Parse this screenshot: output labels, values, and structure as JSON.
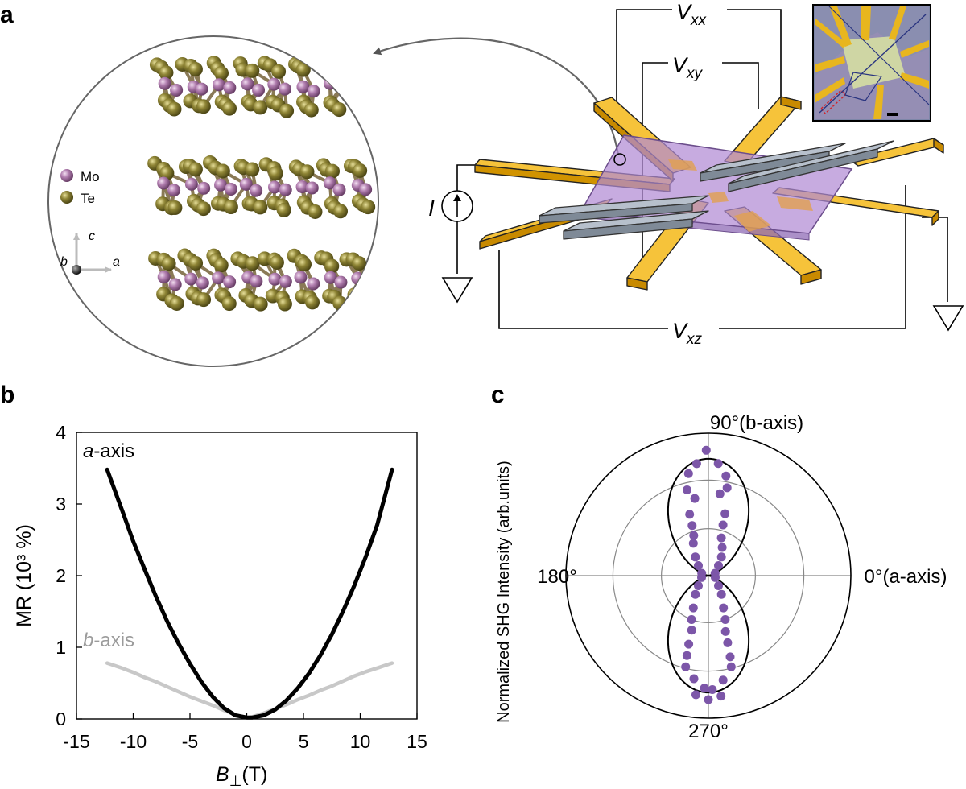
{
  "panels": {
    "a": {
      "label": "a",
      "legend": [
        {
          "label": "Mo",
          "color": "#b27fb0"
        },
        {
          "label": "Te",
          "color": "#8e8435"
        }
      ],
      "axes": {
        "c": "c",
        "b": "b",
        "a": "a"
      },
      "voltages": {
        "vxx": {
          "main": "V",
          "sub": "xx"
        },
        "vxy": {
          "main": "V",
          "sub": "xy"
        },
        "vxz": {
          "main": "V",
          "sub": "xz"
        }
      },
      "current": "I",
      "colors": {
        "electrode": "#f4b400",
        "electrode_side": "#b37f00",
        "flake": "#b18bd4",
        "graphite": "#a9b3c0",
        "graphite_dark": "#6d7885",
        "wire": "#000000"
      }
    },
    "b": {
      "label": "b",
      "series_labels": {
        "a": {
          "italic": "a",
          "rest": "-axis",
          "color": "#000000"
        },
        "b": {
          "italic": "b",
          "rest": "-axis",
          "color": "#9b9b9b"
        }
      },
      "ylabel": "MR (10³ %)",
      "xlabel": {
        "italic": "B",
        "sub": "⊥",
        "rest": "(T)"
      }
    },
    "c": {
      "label": "c",
      "ylabel": "Normalized SHG Intensity (arb.units)",
      "angle_labels": {
        "deg90": "90°(b-axis)",
        "deg180": "180°",
        "deg0": "0°(a-axis)",
        "deg270": "270°"
      },
      "point_color": "#7c56a8"
    }
  },
  "chart_data": [
    {
      "type": "line",
      "panel": "b",
      "title": "",
      "xlabel": "B⊥(T)",
      "ylabel": "MR (10³ %)",
      "xlim": [
        -15,
        15
      ],
      "ylim": [
        0,
        4
      ],
      "xticks": [
        -15,
        -10,
        -5,
        0,
        5,
        10,
        15
      ],
      "yticks": [
        0,
        1,
        2,
        3,
        4
      ],
      "grid": false,
      "x": [
        -12.3,
        -11,
        -10,
        -9,
        -8,
        -7,
        -6,
        -5,
        -4,
        -3,
        -2,
        -1,
        0,
        0.5,
        1.5,
        2.5,
        3.5,
        4.5,
        5.5,
        6.5,
        7.5,
        8.5,
        9.5,
        10.5,
        11.5,
        12.8
      ],
      "series": [
        {
          "name": "a-axis",
          "color": "#000000",
          "values": [
            3.48,
            2.92,
            2.48,
            2.09,
            1.71,
            1.36,
            1.05,
            0.77,
            0.52,
            0.31,
            0.15,
            0.05,
            0.02,
            0.02,
            0.05,
            0.13,
            0.26,
            0.43,
            0.64,
            0.89,
            1.18,
            1.51,
            1.87,
            2.27,
            2.71,
            3.48
          ]
        },
        {
          "name": "b-axis",
          "color": "#c8c8c8",
          "values": [
            0.78,
            0.71,
            0.65,
            0.58,
            0.52,
            0.45,
            0.38,
            0.31,
            0.25,
            0.19,
            0.12,
            0.06,
            0.02,
            0.03,
            0.08,
            0.14,
            0.2,
            0.27,
            0.33,
            0.4,
            0.46,
            0.53,
            0.6,
            0.66,
            0.71,
            0.78
          ]
        }
      ]
    },
    {
      "type": "scatter",
      "panel": "c",
      "subtype": "polar",
      "title": "",
      "ylabel": "Normalized SHG Intensity (arb.units)",
      "r_range": [
        0,
        1
      ],
      "r_rings": [
        0.33,
        0.67,
        1.0
      ],
      "angle_labels": [
        "90°(b-axis)",
        "180°",
        "0°(a-axis)",
        "270°"
      ],
      "fit": {
        "model": "r = |sin θ|^2.6",
        "color": "#000000"
      },
      "points_deg_r": [
        [
          91,
          0.88
        ],
        [
          96,
          0.79
        ],
        [
          85,
          0.79
        ],
        [
          101,
          0.73
        ],
        [
          80,
          0.71
        ],
        [
          104,
          0.62
        ],
        [
          78,
          0.63
        ],
        [
          82,
          0.58
        ],
        [
          100,
          0.55
        ],
        [
          107,
          0.45
        ],
        [
          75,
          0.45
        ],
        [
          108,
          0.37
        ],
        [
          74,
          0.37
        ],
        [
          110,
          0.3
        ],
        [
          71,
          0.28
        ],
        [
          115,
          0.25
        ],
        [
          64,
          0.22
        ],
        [
          125,
          0.16
        ],
        [
          55,
          0.16
        ],
        [
          135,
          0.1
        ],
        [
          45,
          0.1
        ],
        [
          160,
          0.05
        ],
        [
          20,
          0.05
        ],
        [
          195,
          0.05
        ],
        [
          345,
          0.05
        ],
        [
          225,
          0.1
        ],
        [
          315,
          0.1
        ],
        [
          235,
          0.16
        ],
        [
          305,
          0.16
        ],
        [
          245,
          0.25
        ],
        [
          295,
          0.25
        ],
        [
          249,
          0.33
        ],
        [
          291,
          0.33
        ],
        [
          253,
          0.4
        ],
        [
          287,
          0.41
        ],
        [
          254,
          0.5
        ],
        [
          286,
          0.49
        ],
        [
          255,
          0.58
        ],
        [
          285,
          0.59
        ],
        [
          256,
          0.66
        ],
        [
          284,
          0.66
        ],
        [
          262,
          0.73
        ],
        [
          278,
          0.74
        ],
        [
          268,
          0.79
        ],
        [
          272,
          0.8
        ],
        [
          270,
          0.87
        ],
        [
          264,
          0.84
        ],
        [
          276,
          0.85
        ]
      ]
    }
  ]
}
